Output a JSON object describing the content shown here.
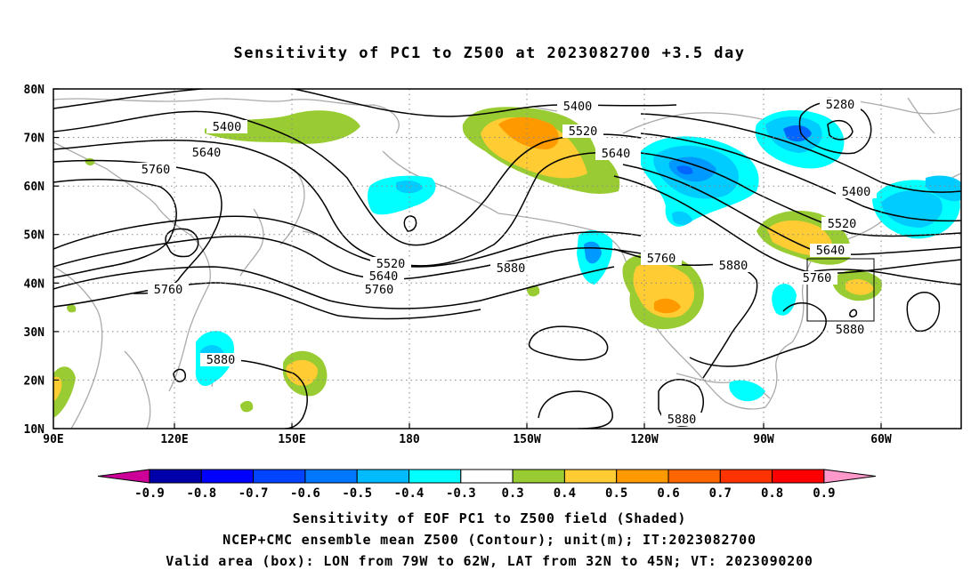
{
  "title": "Sensitivity of PC1 to Z500 at 2023082700 +3.5 day",
  "map": {
    "lat_labels": [
      "80N",
      "70N",
      "60N",
      "50N",
      "40N",
      "30N",
      "20N",
      "10N"
    ],
    "lon_labels": [
      "90E",
      "120E",
      "150E",
      "180",
      "150W",
      "120W",
      "90W",
      "60W"
    ],
    "contour_labels": [
      {
        "text": "5400"
      },
      {
        "text": "5640"
      },
      {
        "text": "5760"
      },
      {
        "text": "5760"
      },
      {
        "text": "5400"
      },
      {
        "text": "5520"
      },
      {
        "text": "5640"
      },
      {
        "text": "5280"
      },
      {
        "text": "5400"
      },
      {
        "text": "5520"
      },
      {
        "text": "5640"
      },
      {
        "text": "5760"
      },
      {
        "text": "5880"
      },
      {
        "text": "5880"
      },
      {
        "text": "5520"
      },
      {
        "text": "5640"
      },
      {
        "text": "5760"
      },
      {
        "text": "5880"
      },
      {
        "text": "5760"
      },
      {
        "text": "5880"
      },
      {
        "text": "5880"
      }
    ],
    "valid_box": {
      "lon": "79W to 62W",
      "lat": "32N to 45N"
    },
    "colors": {
      "pos_0.3": "#99cc33",
      "pos_0.4": "#ffcc33",
      "pos_0.5": "#ff9900",
      "neg_0.3": "#00ffff",
      "neg_0.4": "#00ccff",
      "neg_0.5": "#0099ff",
      "neg_0.6": "#0066ff",
      "neg_0.7": "#0000ff",
      "coast": "#aaaaaa"
    }
  },
  "colorbar": {
    "labels": [
      "-0.9",
      "-0.8",
      "-0.7",
      "-0.6",
      "-0.5",
      "-0.4",
      "-0.3",
      "0.3",
      "0.4",
      "0.5",
      "0.6",
      "0.7",
      "0.8",
      "0.9"
    ],
    "colors": [
      "#0000aa",
      "#0000ff",
      "#0044ff",
      "#0077ff",
      "#00bbff",
      "#00ffff",
      "#ffffff",
      "#99cc33",
      "#ffcc33",
      "#ff9900",
      "#ff6600",
      "#ff3300",
      "#ff0000"
    ],
    "end_left_color": "#cc0099",
    "end_right_color": "#ff99cc"
  },
  "captions": [
    "Sensitivity of EOF PC1 to Z500 field (Shaded)",
    "NCEP+CMC ensemble mean Z500 (Contour); unit(m); IT:2023082700",
    "Valid area (box): LON from 79W to 62W, LAT from 32N to 45N; VT: 2023090200"
  ]
}
